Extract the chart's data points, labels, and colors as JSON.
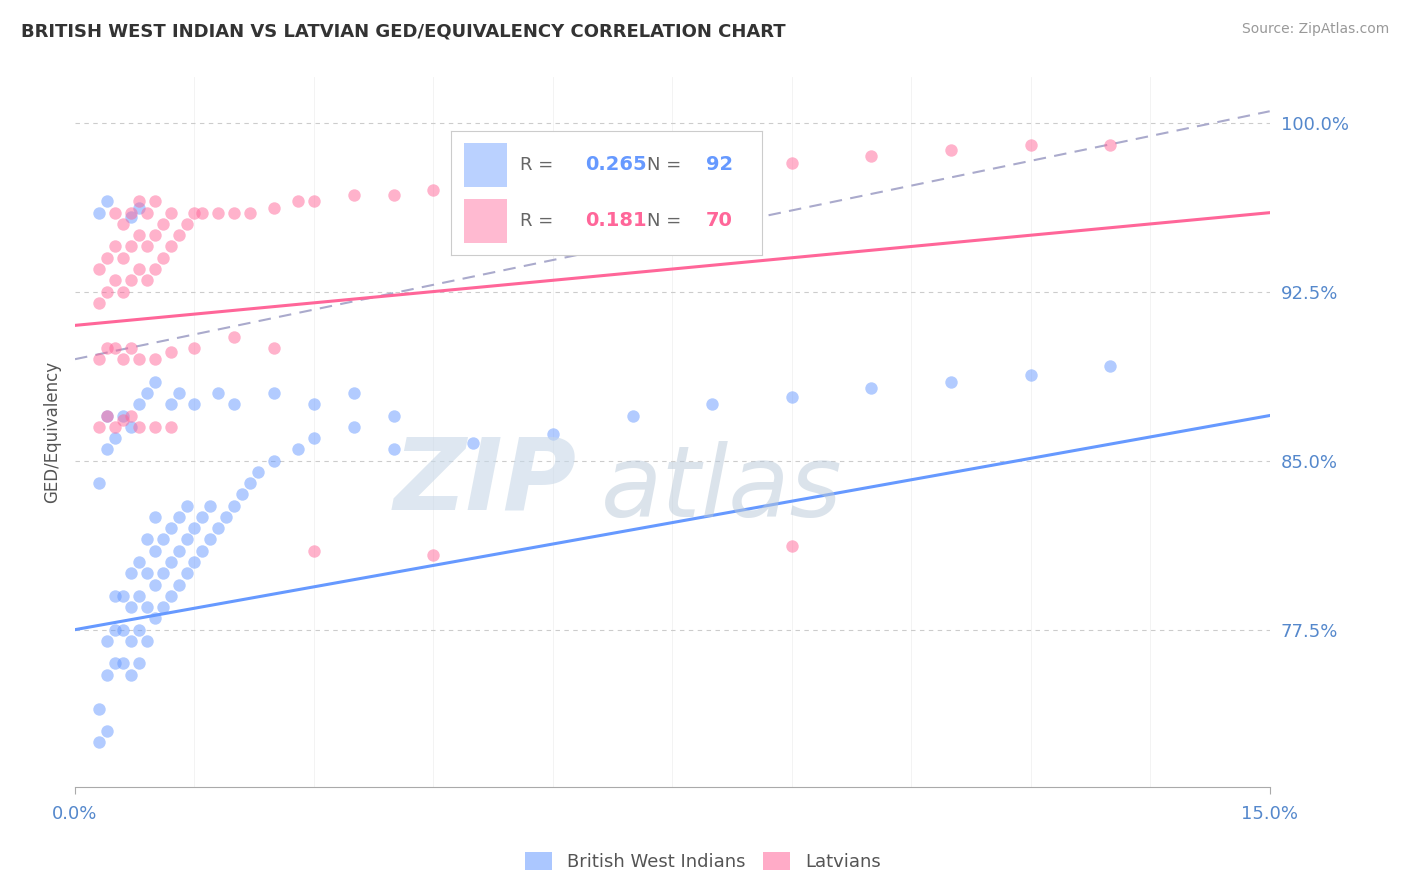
{
  "title": "BRITISH WEST INDIAN VS LATVIAN GED/EQUIVALENCY CORRELATION CHART",
  "source_text": "Source: ZipAtlas.com",
  "ylabel": "GED/Equivalency",
  "xlim": [
    0.0,
    0.15
  ],
  "ylim": [
    0.705,
    1.02
  ],
  "yticks": [
    0.775,
    0.85,
    0.925,
    1.0
  ],
  "ytick_labels": [
    "77.5%",
    "85.0%",
    "92.5%",
    "100.0%"
  ],
  "xticks": [
    0.0,
    0.15
  ],
  "xtick_labels": [
    "0.0%",
    "15.0%"
  ],
  "color_blue": "#6699ff",
  "color_pink": "#ff6699",
  "color_dashed": "#aaaacc",
  "watermark_zip": "ZIP",
  "watermark_atlas": "atlas",
  "blue_scatter": [
    [
      0.003,
      0.725
    ],
    [
      0.003,
      0.74
    ],
    [
      0.004,
      0.73
    ],
    [
      0.004,
      0.755
    ],
    [
      0.004,
      0.77
    ],
    [
      0.005,
      0.76
    ],
    [
      0.005,
      0.775
    ],
    [
      0.005,
      0.79
    ],
    [
      0.006,
      0.76
    ],
    [
      0.006,
      0.775
    ],
    [
      0.006,
      0.79
    ],
    [
      0.007,
      0.755
    ],
    [
      0.007,
      0.77
    ],
    [
      0.007,
      0.785
    ],
    [
      0.007,
      0.8
    ],
    [
      0.008,
      0.76
    ],
    [
      0.008,
      0.775
    ],
    [
      0.008,
      0.79
    ],
    [
      0.008,
      0.805
    ],
    [
      0.009,
      0.77
    ],
    [
      0.009,
      0.785
    ],
    [
      0.009,
      0.8
    ],
    [
      0.009,
      0.815
    ],
    [
      0.01,
      0.78
    ],
    [
      0.01,
      0.795
    ],
    [
      0.01,
      0.81
    ],
    [
      0.01,
      0.825
    ],
    [
      0.011,
      0.785
    ],
    [
      0.011,
      0.8
    ],
    [
      0.011,
      0.815
    ],
    [
      0.012,
      0.79
    ],
    [
      0.012,
      0.805
    ],
    [
      0.012,
      0.82
    ],
    [
      0.013,
      0.795
    ],
    [
      0.013,
      0.81
    ],
    [
      0.013,
      0.825
    ],
    [
      0.014,
      0.8
    ],
    [
      0.014,
      0.815
    ],
    [
      0.014,
      0.83
    ],
    [
      0.015,
      0.805
    ],
    [
      0.015,
      0.82
    ],
    [
      0.016,
      0.81
    ],
    [
      0.016,
      0.825
    ],
    [
      0.017,
      0.815
    ],
    [
      0.017,
      0.83
    ],
    [
      0.018,
      0.82
    ],
    [
      0.019,
      0.825
    ],
    [
      0.02,
      0.83
    ],
    [
      0.021,
      0.835
    ],
    [
      0.022,
      0.84
    ],
    [
      0.023,
      0.845
    ],
    [
      0.025,
      0.85
    ],
    [
      0.028,
      0.855
    ],
    [
      0.03,
      0.86
    ],
    [
      0.035,
      0.865
    ],
    [
      0.04,
      0.87
    ],
    [
      0.003,
      0.84
    ],
    [
      0.004,
      0.855
    ],
    [
      0.004,
      0.87
    ],
    [
      0.005,
      0.86
    ],
    [
      0.006,
      0.87
    ],
    [
      0.007,
      0.865
    ],
    [
      0.008,
      0.875
    ],
    [
      0.009,
      0.88
    ],
    [
      0.01,
      0.885
    ],
    [
      0.012,
      0.875
    ],
    [
      0.013,
      0.88
    ],
    [
      0.015,
      0.875
    ],
    [
      0.018,
      0.88
    ],
    [
      0.02,
      0.875
    ],
    [
      0.025,
      0.88
    ],
    [
      0.03,
      0.875
    ],
    [
      0.035,
      0.88
    ],
    [
      0.003,
      0.96
    ],
    [
      0.004,
      0.965
    ],
    [
      0.007,
      0.958
    ],
    [
      0.008,
      0.962
    ],
    [
      0.04,
      0.855
    ],
    [
      0.05,
      0.858
    ],
    [
      0.06,
      0.862
    ],
    [
      0.07,
      0.87
    ],
    [
      0.08,
      0.875
    ],
    [
      0.09,
      0.878
    ],
    [
      0.1,
      0.882
    ],
    [
      0.11,
      0.885
    ],
    [
      0.12,
      0.888
    ],
    [
      0.13,
      0.892
    ]
  ],
  "pink_scatter": [
    [
      0.003,
      0.92
    ],
    [
      0.003,
      0.935
    ],
    [
      0.004,
      0.925
    ],
    [
      0.004,
      0.94
    ],
    [
      0.005,
      0.93
    ],
    [
      0.005,
      0.945
    ],
    [
      0.005,
      0.96
    ],
    [
      0.006,
      0.925
    ],
    [
      0.006,
      0.94
    ],
    [
      0.006,
      0.955
    ],
    [
      0.007,
      0.93
    ],
    [
      0.007,
      0.945
    ],
    [
      0.007,
      0.96
    ],
    [
      0.008,
      0.935
    ],
    [
      0.008,
      0.95
    ],
    [
      0.008,
      0.965
    ],
    [
      0.009,
      0.93
    ],
    [
      0.009,
      0.945
    ],
    [
      0.009,
      0.96
    ],
    [
      0.01,
      0.935
    ],
    [
      0.01,
      0.95
    ],
    [
      0.01,
      0.965
    ],
    [
      0.011,
      0.94
    ],
    [
      0.011,
      0.955
    ],
    [
      0.012,
      0.945
    ],
    [
      0.012,
      0.96
    ],
    [
      0.013,
      0.95
    ],
    [
      0.014,
      0.955
    ],
    [
      0.015,
      0.96
    ],
    [
      0.016,
      0.96
    ],
    [
      0.018,
      0.96
    ],
    [
      0.02,
      0.96
    ],
    [
      0.022,
      0.96
    ],
    [
      0.025,
      0.962
    ],
    [
      0.028,
      0.965
    ],
    [
      0.03,
      0.965
    ],
    [
      0.035,
      0.968
    ],
    [
      0.04,
      0.968
    ],
    [
      0.045,
      0.97
    ],
    [
      0.05,
      0.97
    ],
    [
      0.055,
      0.972
    ],
    [
      0.06,
      0.975
    ],
    [
      0.065,
      0.975
    ],
    [
      0.07,
      0.978
    ],
    [
      0.075,
      0.978
    ],
    [
      0.08,
      0.98
    ],
    [
      0.09,
      0.982
    ],
    [
      0.1,
      0.985
    ],
    [
      0.11,
      0.988
    ],
    [
      0.12,
      0.99
    ],
    [
      0.13,
      0.99
    ],
    [
      0.003,
      0.895
    ],
    [
      0.004,
      0.9
    ],
    [
      0.005,
      0.9
    ],
    [
      0.006,
      0.895
    ],
    [
      0.007,
      0.9
    ],
    [
      0.008,
      0.895
    ],
    [
      0.01,
      0.895
    ],
    [
      0.012,
      0.898
    ],
    [
      0.015,
      0.9
    ],
    [
      0.02,
      0.905
    ],
    [
      0.025,
      0.9
    ],
    [
      0.003,
      0.865
    ],
    [
      0.004,
      0.87
    ],
    [
      0.005,
      0.865
    ],
    [
      0.006,
      0.868
    ],
    [
      0.007,
      0.87
    ],
    [
      0.008,
      0.865
    ],
    [
      0.01,
      0.865
    ],
    [
      0.012,
      0.865
    ],
    [
      0.03,
      0.81
    ],
    [
      0.045,
      0.808
    ],
    [
      0.09,
      0.812
    ]
  ],
  "blue_line_x": [
    0.0,
    0.15
  ],
  "blue_line_y": [
    0.775,
    0.87
  ],
  "pink_line_x": [
    0.0,
    0.15
  ],
  "pink_line_y": [
    0.91,
    0.96
  ],
  "dash_line_x": [
    0.0,
    0.15
  ],
  "dash_line_y": [
    0.895,
    1.005
  ]
}
